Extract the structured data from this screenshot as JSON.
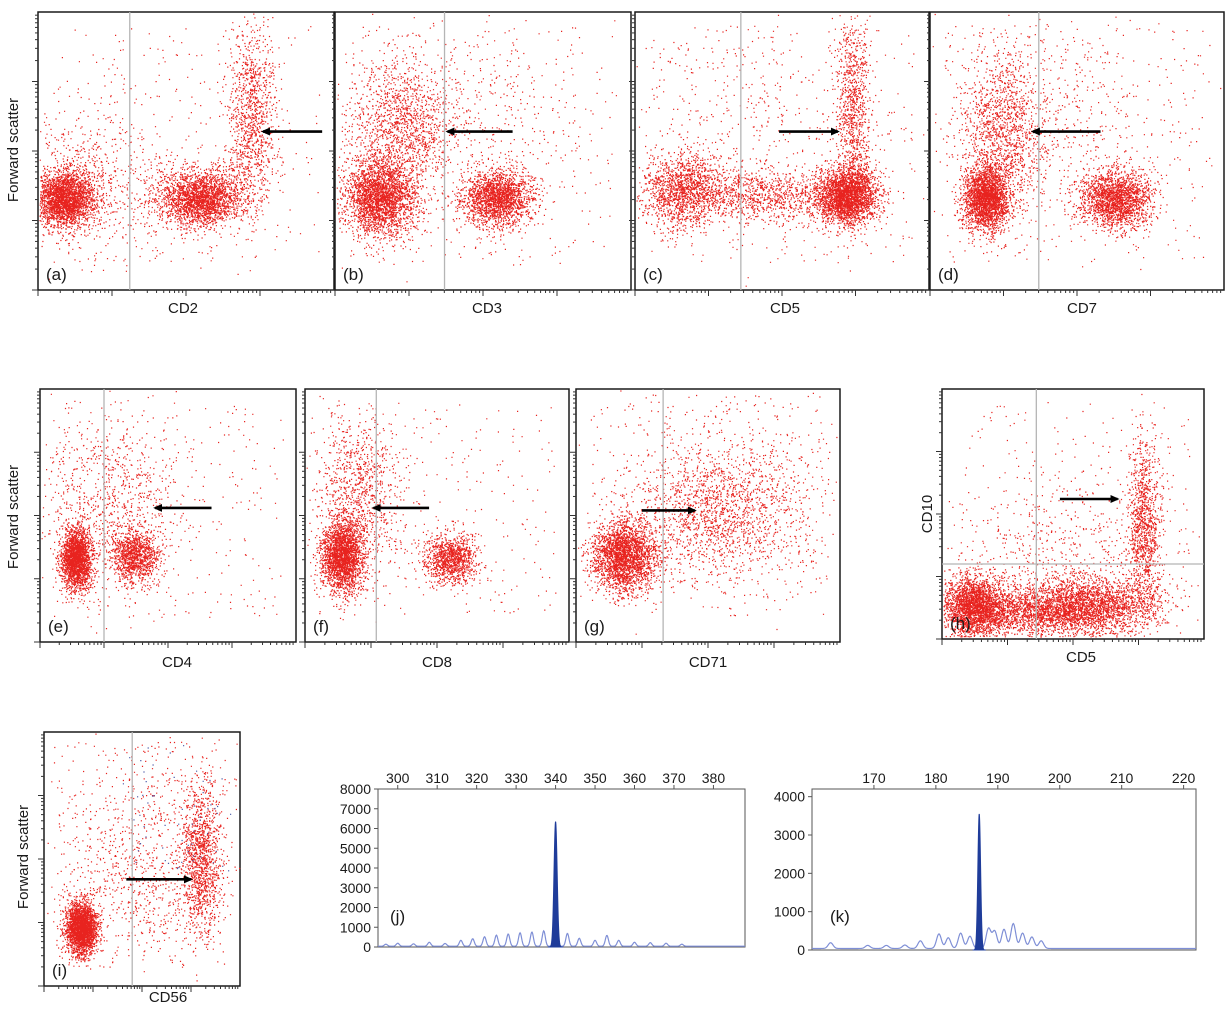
{
  "chart_data": [
    {
      "type": "scatter",
      "panel_label": "(a)",
      "xlabel": "CD2",
      "ylabel": "Forward scatter",
      "scale": "log",
      "color": "#e8231f",
      "populations": [
        {
          "x": 0.09,
          "y": 0.33,
          "sx": 0.05,
          "sy": 0.05,
          "count": 2600
        },
        {
          "x": 0.55,
          "y": 0.33,
          "sx": 0.07,
          "sy": 0.05,
          "count": 2400
        },
        {
          "x": 0.2,
          "y": 0.4,
          "sx": 0.15,
          "sy": 0.14,
          "count": 700
        },
        {
          "x": 0.72,
          "y": 0.62,
          "sx": 0.04,
          "sy": 0.17,
          "count": 1100
        }
      ],
      "arrow": {
        "x1": 0.96,
        "y1": 0.57,
        "x2": 0.76,
        "y2": 0.57
      },
      "gate_x": 0.31
    },
    {
      "type": "scatter",
      "panel_label": "(b)",
      "xlabel": "CD3",
      "ylabel": "",
      "scale": "log",
      "color": "#e8231f",
      "populations": [
        {
          "x": 0.15,
          "y": 0.33,
          "sx": 0.06,
          "sy": 0.07,
          "count": 2600
        },
        {
          "x": 0.55,
          "y": 0.33,
          "sx": 0.06,
          "sy": 0.05,
          "count": 2000
        },
        {
          "x": 0.22,
          "y": 0.58,
          "sx": 0.09,
          "sy": 0.12,
          "count": 1300
        },
        {
          "x": 0.4,
          "y": 0.6,
          "sx": 0.25,
          "sy": 0.2,
          "count": 600
        }
      ],
      "arrow": {
        "x1": 0.6,
        "y1": 0.57,
        "x2": 0.38,
        "y2": 0.57
      },
      "gate_x": 0.37
    },
    {
      "type": "scatter",
      "panel_label": "(c)",
      "xlabel": "CD5",
      "ylabel": "",
      "scale": "log",
      "color": "#e8231f",
      "populations": [
        {
          "x": 0.16,
          "y": 0.36,
          "sx": 0.07,
          "sy": 0.07,
          "count": 1300
        },
        {
          "x": 0.72,
          "y": 0.34,
          "sx": 0.05,
          "sy": 0.05,
          "count": 2600
        },
        {
          "x": 0.42,
          "y": 0.34,
          "sx": 0.17,
          "sy": 0.05,
          "count": 1200
        },
        {
          "x": 0.74,
          "y": 0.65,
          "sx": 0.03,
          "sy": 0.18,
          "count": 1000
        },
        {
          "x": 0.35,
          "y": 0.62,
          "sx": 0.25,
          "sy": 0.2,
          "count": 400
        }
      ],
      "arrow": {
        "x1": 0.49,
        "y1": 0.57,
        "x2": 0.69,
        "y2": 0.57
      },
      "gate_x": 0.36
    },
    {
      "type": "scatter",
      "panel_label": "(d)",
      "xlabel": "CD7",
      "ylabel": "",
      "scale": "log",
      "color": "#e8231f",
      "populations": [
        {
          "x": 0.19,
          "y": 0.33,
          "sx": 0.04,
          "sy": 0.06,
          "count": 2400
        },
        {
          "x": 0.63,
          "y": 0.33,
          "sx": 0.06,
          "sy": 0.05,
          "count": 2000
        },
        {
          "x": 0.25,
          "y": 0.58,
          "sx": 0.07,
          "sy": 0.14,
          "count": 1200
        },
        {
          "x": 0.38,
          "y": 0.6,
          "sx": 0.25,
          "sy": 0.2,
          "count": 600
        }
      ],
      "arrow": {
        "x1": 0.58,
        "y1": 0.57,
        "x2": 0.35,
        "y2": 0.57
      },
      "gate_x": 0.37
    },
    {
      "type": "scatter",
      "panel_label": "(e)",
      "xlabel": "CD4",
      "ylabel": "Forward scatter",
      "scale": "log",
      "color": "#e8231f",
      "populations": [
        {
          "x": 0.14,
          "y": 0.33,
          "sx": 0.03,
          "sy": 0.06,
          "count": 2200
        },
        {
          "x": 0.37,
          "y": 0.34,
          "sx": 0.045,
          "sy": 0.05,
          "count": 1100
        },
        {
          "x": 0.27,
          "y": 0.55,
          "sx": 0.14,
          "sy": 0.18,
          "count": 900
        }
      ],
      "arrow": {
        "x1": 0.67,
        "y1": 0.53,
        "x2": 0.45,
        "y2": 0.53
      },
      "gate_x": 0.25
    },
    {
      "type": "scatter",
      "panel_label": "(f)",
      "xlabel": "CD8",
      "ylabel": "",
      "scale": "log",
      "color": "#e8231f",
      "populations": [
        {
          "x": 0.14,
          "y": 0.34,
          "sx": 0.04,
          "sy": 0.07,
          "count": 2300
        },
        {
          "x": 0.55,
          "y": 0.33,
          "sx": 0.05,
          "sy": 0.05,
          "count": 1100
        },
        {
          "x": 0.2,
          "y": 0.58,
          "sx": 0.08,
          "sy": 0.15,
          "count": 1000
        }
      ],
      "arrow": {
        "x1": 0.47,
        "y1": 0.53,
        "x2": 0.26,
        "y2": 0.53
      },
      "gate_x": 0.27
    },
    {
      "type": "scatter",
      "panel_label": "(g)",
      "xlabel": "CD71",
      "ylabel": "",
      "scale": "log",
      "color": "#e8231f",
      "populations": [
        {
          "x": 0.18,
          "y": 0.34,
          "sx": 0.06,
          "sy": 0.07,
          "count": 2500
        },
        {
          "x": 0.52,
          "y": 0.5,
          "sx": 0.16,
          "sy": 0.12,
          "count": 1300
        },
        {
          "x": 0.6,
          "y": 0.62,
          "sx": 0.22,
          "sy": 0.18,
          "count": 700
        }
      ],
      "arrow": {
        "x1": 0.25,
        "y1": 0.52,
        "x2": 0.45,
        "y2": 0.52
      },
      "gate_x": 0.33
    },
    {
      "type": "scatter",
      "panel_label": "(h)",
      "xlabel": "CD5",
      "ylabel": "CD10",
      "scale": "log",
      "color": "#e8231f",
      "populations": [
        {
          "x": 0.12,
          "y": 0.13,
          "sx": 0.06,
          "sy": 0.06,
          "count": 2300
        },
        {
          "x": 0.56,
          "y": 0.13,
          "sx": 0.13,
          "sy": 0.06,
          "count": 2500
        },
        {
          "x": 0.32,
          "y": 0.11,
          "sx": 0.13,
          "sy": 0.05,
          "count": 1500
        },
        {
          "x": 0.77,
          "y": 0.45,
          "sx": 0.03,
          "sy": 0.17,
          "count": 1100
        },
        {
          "x": 0.45,
          "y": 0.35,
          "sx": 0.22,
          "sy": 0.15,
          "count": 500
        }
      ],
      "arrow": {
        "x1": 0.45,
        "y1": 0.56,
        "x2": 0.67,
        "y2": 0.56
      },
      "gate_x": 0.36,
      "gate_y": 0.3
    },
    {
      "type": "scatter",
      "panel_label": "(i)",
      "xlabel": "CD56",
      "ylabel": "Forward scatter",
      "scale": "log",
      "color": "#e8231f",
      "populations": [
        {
          "x": 0.19,
          "y": 0.23,
          "sx": 0.04,
          "sy": 0.05,
          "count": 2600
        },
        {
          "x": 0.8,
          "y": 0.5,
          "sx": 0.05,
          "sy": 0.15,
          "count": 1200
        },
        {
          "x": 0.5,
          "y": 0.4,
          "sx": 0.22,
          "sy": 0.14,
          "count": 500
        },
        {
          "x": 0.6,
          "y": 0.65,
          "sx": 0.22,
          "sy": 0.2,
          "count": 350
        }
      ],
      "arrow": {
        "x1": 0.42,
        "y1": 0.42,
        "x2": 0.75,
        "y2": 0.42
      },
      "gate_x": 0.45,
      "scatter_blue_dots": true
    },
    {
      "type": "area",
      "panel_label": "(j)",
      "xlim": [
        295,
        388
      ],
      "x_ticks": [
        300,
        310,
        320,
        330,
        340,
        350,
        360,
        370,
        380
      ],
      "ylim": [
        0,
        8000
      ],
      "y_ticks": [
        0,
        1000,
        2000,
        3000,
        4000,
        5000,
        6000,
        7000,
        8000
      ],
      "peak": {
        "x": 340,
        "y": 6350,
        "width": 0.8
      },
      "minor_peaks": [
        {
          "x": 297,
          "y": 100
        },
        {
          "x": 300,
          "y": 150
        },
        {
          "x": 304,
          "y": 120
        },
        {
          "x": 308,
          "y": 200
        },
        {
          "x": 312,
          "y": 140
        },
        {
          "x": 316,
          "y": 300
        },
        {
          "x": 319,
          "y": 380
        },
        {
          "x": 322,
          "y": 480
        },
        {
          "x": 325,
          "y": 560
        },
        {
          "x": 328,
          "y": 620
        },
        {
          "x": 331,
          "y": 680
        },
        {
          "x": 334,
          "y": 720
        },
        {
          "x": 337,
          "y": 780
        },
        {
          "x": 343,
          "y": 650
        },
        {
          "x": 346,
          "y": 400
        },
        {
          "x": 350,
          "y": 300
        },
        {
          "x": 353,
          "y": 550
        },
        {
          "x": 356,
          "y": 300
        },
        {
          "x": 360,
          "y": 200
        },
        {
          "x": 364,
          "y": 180
        },
        {
          "x": 368,
          "y": 150
        },
        {
          "x": 372,
          "y": 100
        }
      ],
      "line_color": "#7f8fd6",
      "fill_color": "#1f3c9a"
    },
    {
      "type": "area",
      "panel_label": "(k)",
      "xlim": [
        160,
        222
      ],
      "x_ticks": [
        170,
        180,
        190,
        200,
        210,
        220
      ],
      "ylim": [
        0,
        4200
      ],
      "y_ticks": [
        0,
        1000,
        2000,
        3000,
        4000
      ],
      "peak": {
        "x": 187,
        "y": 3550,
        "width": 0.45
      },
      "minor_peaks": [
        {
          "x": 163,
          "y": 150
        },
        {
          "x": 169,
          "y": 80
        },
        {
          "x": 172,
          "y": 80
        },
        {
          "x": 175,
          "y": 90
        },
        {
          "x": 177.5,
          "y": 200
        },
        {
          "x": 180.5,
          "y": 380
        },
        {
          "x": 182,
          "y": 280
        },
        {
          "x": 184,
          "y": 400
        },
        {
          "x": 185.5,
          "y": 320
        },
        {
          "x": 188.5,
          "y": 520
        },
        {
          "x": 189.5,
          "y": 450
        },
        {
          "x": 191,
          "y": 500
        },
        {
          "x": 192.5,
          "y": 650
        },
        {
          "x": 194,
          "y": 400
        },
        {
          "x": 195.5,
          "y": 300
        },
        {
          "x": 197,
          "y": 200
        }
      ],
      "line_color": "#7f8fd6",
      "fill_color": "#1f3c9a"
    }
  ]
}
